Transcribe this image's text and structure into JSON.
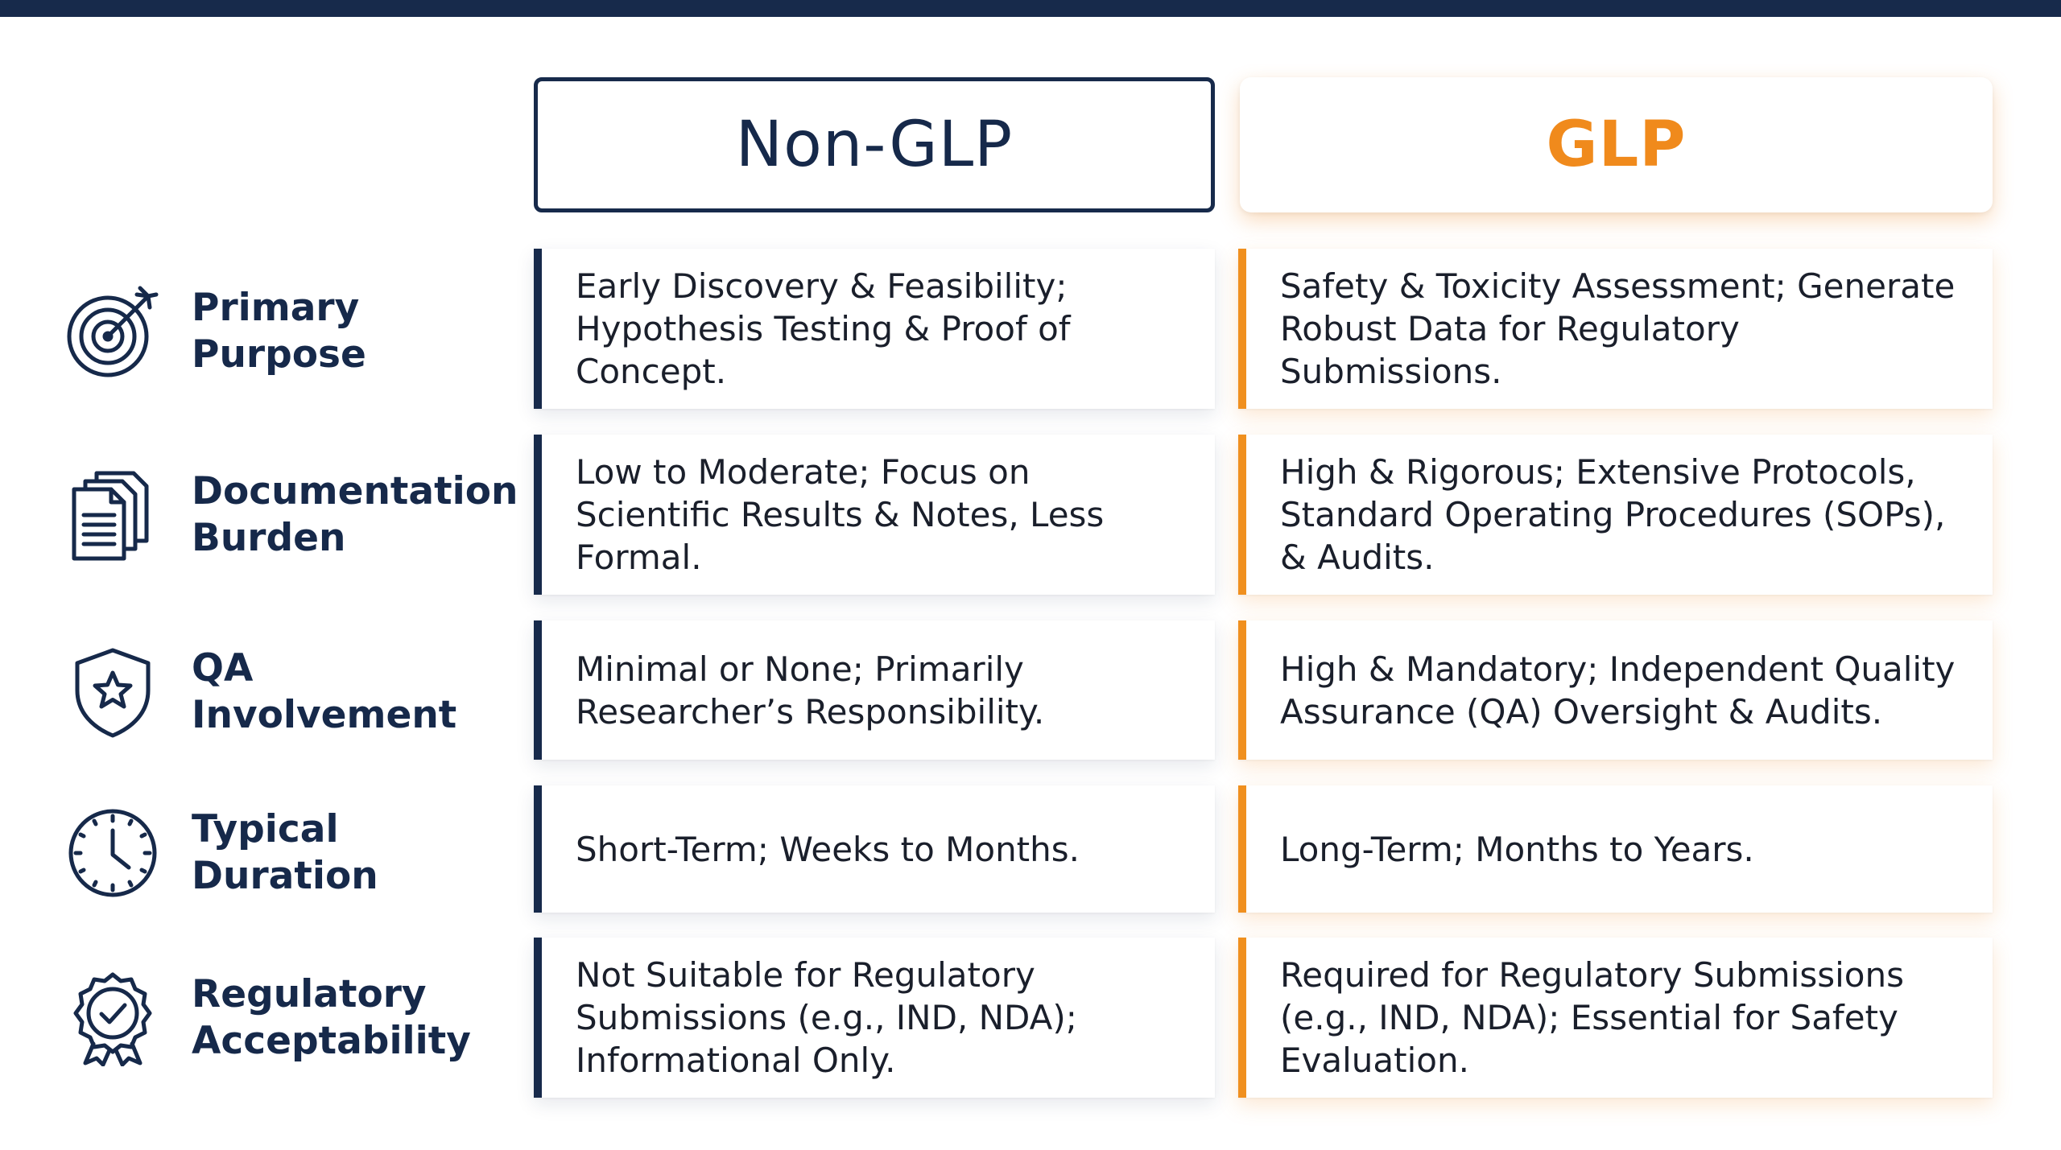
{
  "headers": {
    "non_glp": "Non-GLP",
    "glp": "GLP"
  },
  "colors": {
    "navy": "#172a4b",
    "orange": "#f08a1c"
  },
  "rows": [
    {
      "icon": "target-icon",
      "label": "Primary\nPurpose",
      "non_glp": "Early Discovery & Feasibility; Hypothesis Testing & Proof of Concept.",
      "glp": "Safety & Toxicity Assessment; Generate Robust Data for Regulatory Submissions."
    },
    {
      "icon": "documents-icon",
      "label": "Documentation\nBurden",
      "non_glp": "Low to Moderate; Focus on Scientific Results & Notes, Less Formal.",
      "glp": "High & Rigorous; Extensive Protocols, Standard Operating Procedures (SOPs), & Audits."
    },
    {
      "icon": "shield-star-icon",
      "label": "QA\nInvolvement",
      "non_glp": "Minimal or None; Primarily Researcher’s Responsibility.",
      "glp": "High & Mandatory; Independent Quality Assurance (QA) Oversight & Audits."
    },
    {
      "icon": "clock-icon",
      "label": "Typical\nDuration",
      "non_glp": "Short-Term; Weeks to Months.",
      "glp": "Long-Term; Months to Years."
    },
    {
      "icon": "award-badge-icon",
      "label": "Regulatory\nAcceptability",
      "non_glp": "Not Suitable for Regulatory Submissions (e.g., IND, NDA); Informational Only.",
      "glp": "Required for Regulatory Submissions (e.g., IND, NDA); Essential for Safety Evaluation."
    }
  ]
}
